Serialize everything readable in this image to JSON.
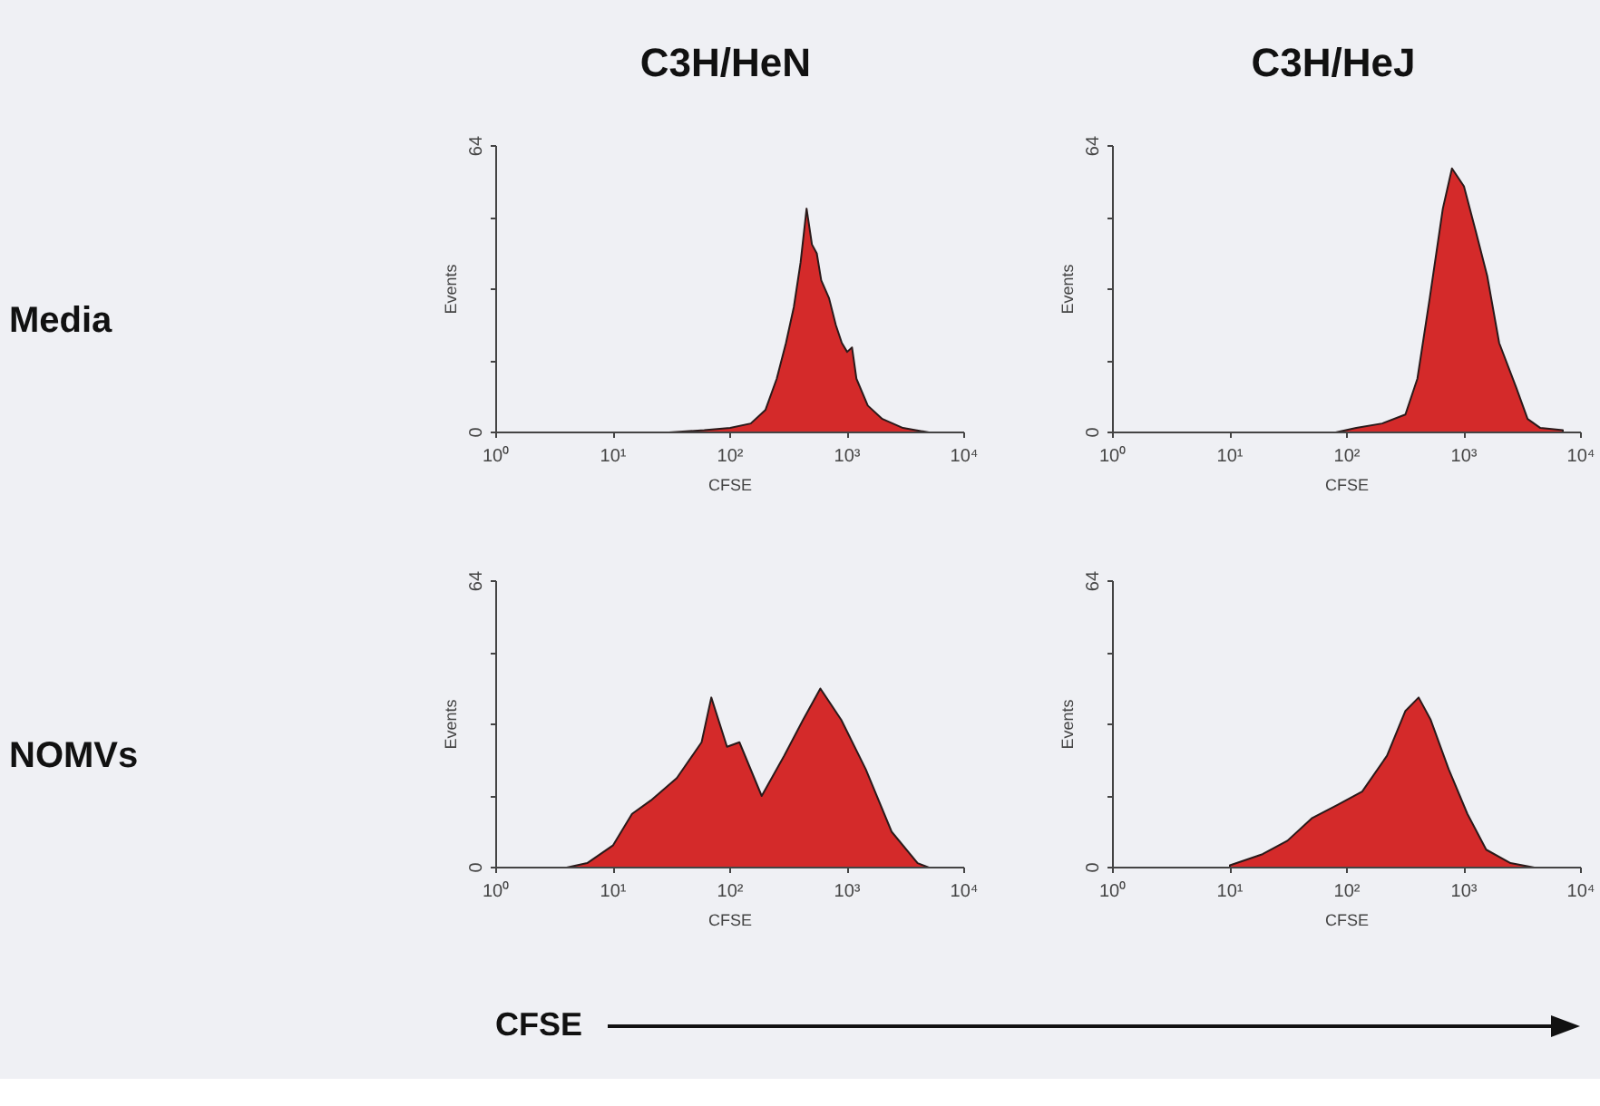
{
  "chart_data": [
    {
      "type": "area",
      "title": "C3H/HeN",
      "annotations": [
        "Media"
      ],
      "xlabel": "CFSE",
      "ylabel": "Events",
      "log": "x",
      "xlim": [
        1,
        10000
      ],
      "ylim": [
        0,
        64
      ],
      "xticks": [
        {
          "value": 1,
          "label": "10⁰"
        },
        {
          "value": 10,
          "label": "10¹"
        },
        {
          "value": 100,
          "label": "10²"
        },
        {
          "value": 1000,
          "label": "10³"
        },
        {
          "value": 10000,
          "label": "10⁴"
        }
      ],
      "yticks": [
        0,
        {
          "value": 16,
          "label": null
        },
        {
          "value": 32,
          "label": null
        },
        {
          "value": 48,
          "label": null
        },
        64
      ],
      "x": [
        30,
        60,
        100,
        150,
        200,
        250,
        300,
        350,
        400,
        450,
        500,
        550,
        600,
        700,
        800,
        900,
        1000,
        1100,
        1200,
        1500,
        2000,
        3000,
        5000
      ],
      "series": [
        {
          "color": "#d42a2a",
          "values": [
            0,
            0.5,
            1,
            2,
            5,
            12,
            20,
            28,
            38,
            50,
            42,
            40,
            34,
            30,
            24,
            20,
            18,
            19,
            12,
            6,
            3,
            1,
            0
          ]
        }
      ]
    },
    {
      "type": "area",
      "title": "C3H/HeJ",
      "xlabel": "CFSE",
      "ylabel": "Events",
      "log": "x",
      "xlim": [
        1,
        10000
      ],
      "ylim": [
        0,
        64
      ],
      "xticks": [
        {
          "value": 1,
          "label": "10⁰"
        },
        {
          "value": 10,
          "label": "10¹"
        },
        {
          "value": 100,
          "label": "10²"
        },
        {
          "value": 1000,
          "label": "10³"
        },
        {
          "value": 10000,
          "label": "10⁴"
        }
      ],
      "yticks": [
        0,
        {
          "value": 16,
          "label": null
        },
        {
          "value": 32,
          "label": null
        },
        {
          "value": 48,
          "label": null
        },
        64
      ],
      "x": [
        80,
        120,
        200,
        316,
        400,
        510,
        660,
        790,
        1000,
        1260,
        1580,
        2000,
        2800,
        3500,
        4500,
        7000
      ],
      "series": [
        {
          "color": "#d42a2a",
          "values": [
            0,
            1,
            2,
            4,
            12,
            30,
            50,
            59,
            55,
            45,
            35,
            20,
            10,
            3,
            1,
            0.5
          ]
        }
      ]
    },
    {
      "type": "area",
      "annotations": [
        "NOMVs",
        "CFSE"
      ],
      "xlabel": "CFSE",
      "ylabel": "Events",
      "log": "x",
      "xlim": [
        1,
        10000
      ],
      "ylim": [
        0,
        64
      ],
      "xticks": [
        {
          "value": 1,
          "label": "10⁰"
        },
        {
          "value": 10,
          "label": "10¹"
        },
        {
          "value": 100,
          "label": "10²"
        },
        {
          "value": 1000,
          "label": "10³"
        },
        {
          "value": 10000,
          "label": "10⁴"
        }
      ],
      "yticks": [
        0,
        {
          "value": 16,
          "label": null
        },
        {
          "value": 32,
          "label": null
        },
        {
          "value": 48,
          "label": null
        },
        64
      ],
      "x": [
        4,
        6,
        10,
        14.5,
        21,
        35,
        57,
        69,
        94,
        120,
        186,
        290,
        420,
        590,
        890,
        1440,
        2400,
        4000,
        5000
      ],
      "series": [
        {
          "color": "#d42a2a",
          "values": [
            0,
            1,
            5,
            12,
            15,
            20,
            28,
            38,
            27,
            28,
            16,
            25,
            33,
            40,
            33,
            22,
            8,
            1,
            0
          ]
        }
      ]
    },
    {
      "type": "area",
      "xlabel": "CFSE",
      "ylabel": "Events",
      "log": "x",
      "xlim": [
        1,
        10000
      ],
      "ylim": [
        0,
        64
      ],
      "xticks": [
        {
          "value": 1,
          "label": "10⁰"
        },
        {
          "value": 10,
          "label": "10¹"
        },
        {
          "value": 100,
          "label": "10²"
        },
        {
          "value": 1000,
          "label": "10³"
        },
        {
          "value": 10000,
          "label": "10⁴"
        }
      ],
      "yticks": [
        0,
        {
          "value": 16,
          "label": null
        },
        {
          "value": 32,
          "label": null
        },
        {
          "value": 48,
          "label": null
        },
        64
      ],
      "x": [
        10,
        19,
        31,
        50,
        83,
        135,
        220,
        316,
        410,
        520,
        740,
        1070,
        1550,
        2500,
        4000
      ],
      "series": [
        {
          "color": "#d42a2a",
          "values": [
            0.5,
            3,
            6,
            11,
            14,
            17,
            25,
            35,
            38,
            33,
            22,
            12,
            4,
            1,
            0
          ]
        }
      ]
    }
  ]
}
